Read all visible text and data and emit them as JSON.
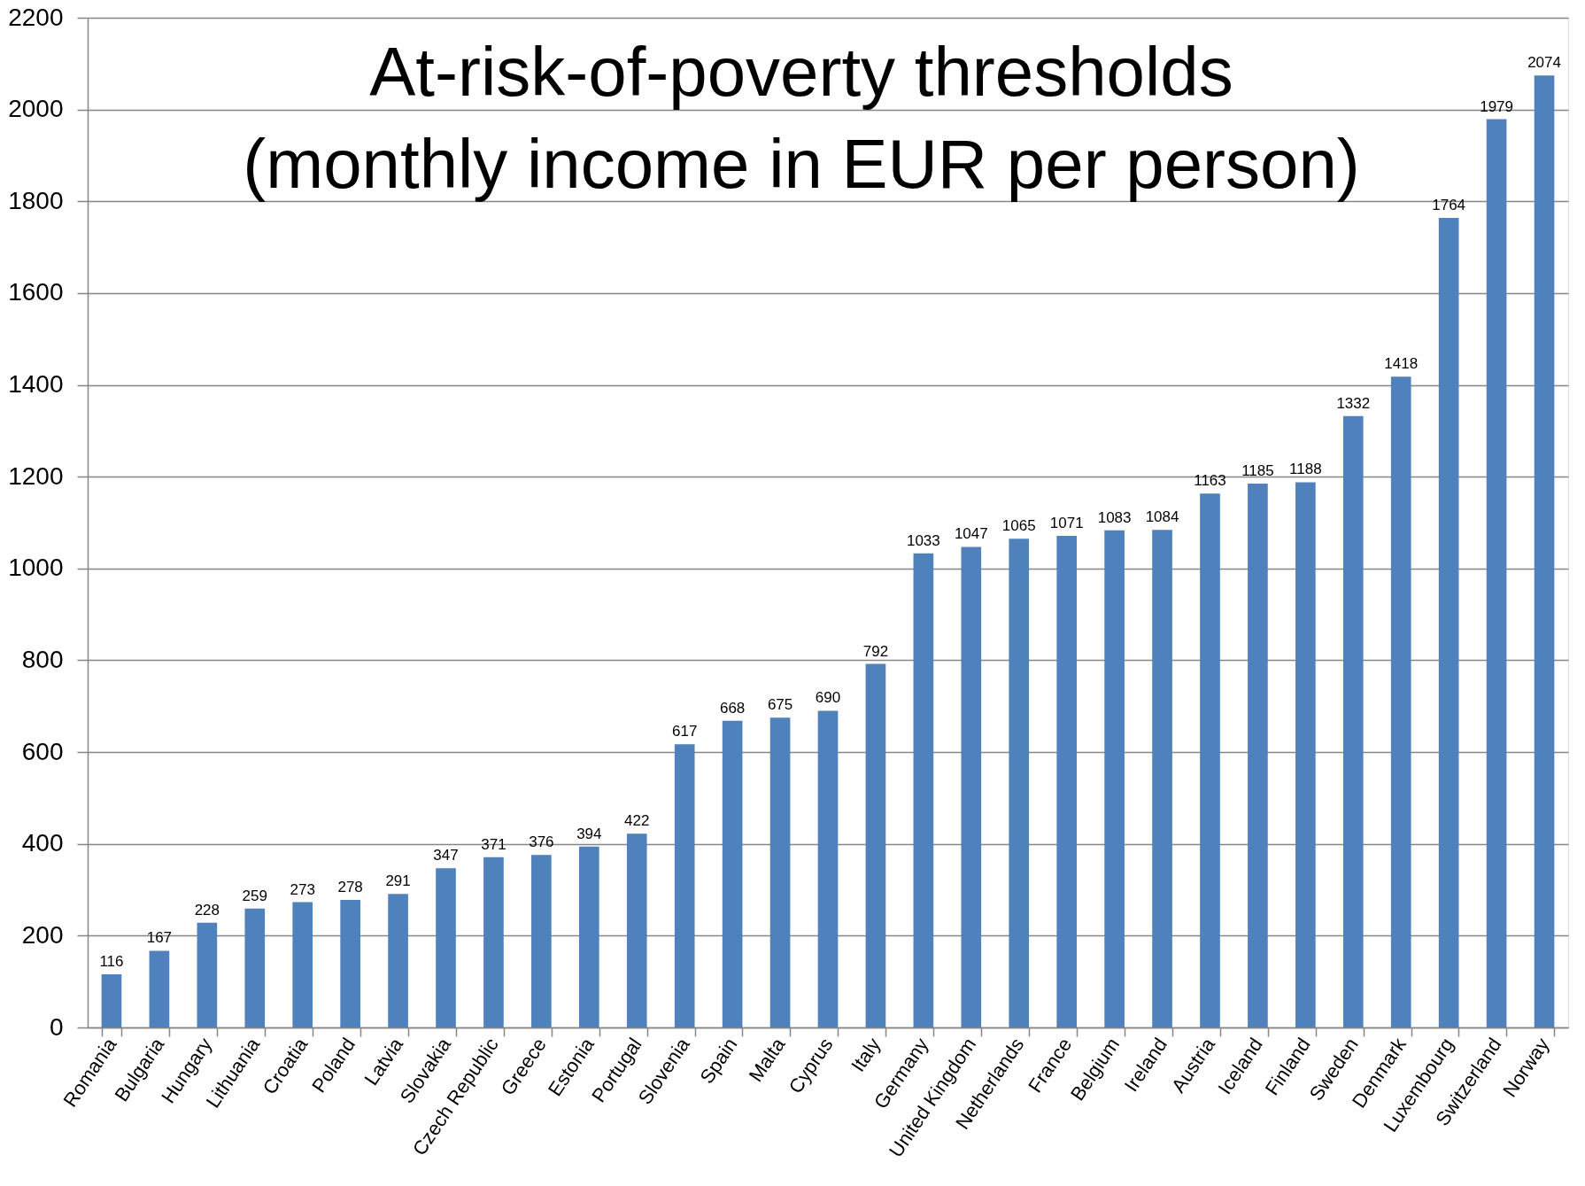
{
  "chart_data": {
    "type": "bar",
    "title": "At-risk-of-poverty thresholds\n(monthly income in EUR per person)",
    "categories": [
      "Romania",
      "Bulgaria",
      "Hungary",
      "Lithuania",
      "Croatia",
      "Poland",
      "Latvia",
      "Slovakia",
      "Czech Republic",
      "Greece",
      "Estonia",
      "Portugal",
      "Slovenia",
      "Spain",
      "Malta",
      "Cyprus",
      "Italy",
      "Germany",
      "United Kingdom",
      "Netherlands",
      "France",
      "Belgium",
      "Ireland",
      "Austria",
      "Iceland",
      "Finland",
      "Sweden",
      "Denmark",
      "Luxembourg",
      "Switzerland",
      "Norway"
    ],
    "values": [
      116,
      167,
      228,
      259,
      273,
      278,
      291,
      347,
      371,
      376,
      394,
      422,
      617,
      668,
      675,
      690,
      792,
      1033,
      1047,
      1065,
      1071,
      1083,
      1084,
      1163,
      1185,
      1188,
      1332,
      1418,
      1764,
      1979,
      2074
    ],
    "color": "#4f81bd",
    "ylim": [
      0,
      2200
    ],
    "yticks": [
      0,
      200,
      400,
      600,
      800,
      1000,
      1200,
      1400,
      1600,
      1800,
      2000,
      2200
    ],
    "grid": "y",
    "data_labels": true
  }
}
